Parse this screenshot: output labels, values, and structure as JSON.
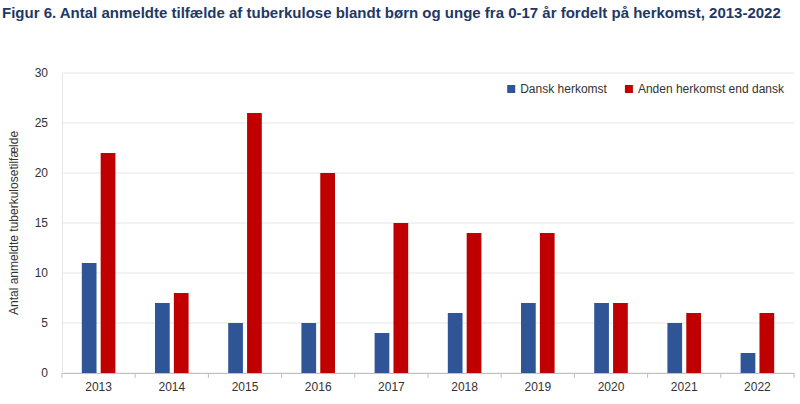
{
  "chart_data": {
    "type": "bar",
    "title": "Figur 6. Antal anmeldte tilfælde af tuberkulose blandt børn og unge fra 0-17 år fordelt på herkomst, 2013-2022",
    "y_label": "Antal anmeldte tuberkulosetilfælde",
    "categories": [
      "2013",
      "2014",
      "2015",
      "2016",
      "2017",
      "2018",
      "2019",
      "2020",
      "2021",
      "2022"
    ],
    "series": [
      {
        "name": "Dansk herkomst",
        "color": "#2f5597",
        "values": [
          11,
          7,
          5,
          5,
          4,
          6,
          7,
          7,
          5,
          2
        ]
      },
      {
        "name": "Anden herkomst end dansk",
        "color": "#c00000",
        "values": [
          22,
          8,
          26,
          20,
          15,
          14,
          14,
          7,
          6,
          6
        ]
      }
    ],
    "ylim": [
      0,
      30
    ],
    "yticks": [
      0,
      5,
      10,
      15,
      20,
      25,
      30
    ],
    "grid": true,
    "legend": "top-right"
  }
}
